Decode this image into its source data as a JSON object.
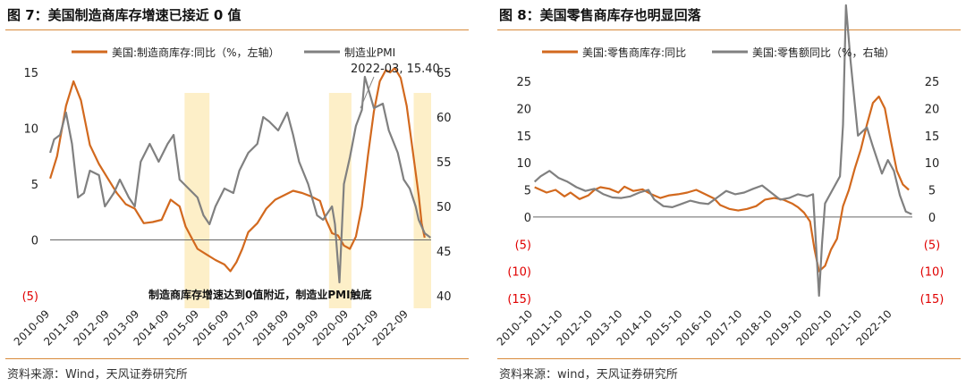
{
  "charts": [
    {
      "title": "图 7：美国制造商库存增速已接近 0 值",
      "source": "资料来源：Wind，天风证券研究所",
      "legend": [
        "美国:制造商库存:同比（%，左轴）",
        "制造业PMI"
      ],
      "annotation": "2022-03, 15.40",
      "note": "制造商库存增速达到0值附近，制造业PMI触底",
      "left_ticks": [
        "(5)",
        "0",
        "5",
        "10",
        "15"
      ],
      "right_ticks": [
        "40",
        "45",
        "50",
        "55",
        "60",
        "65"
      ],
      "x_ticks": [
        "2010-09",
        "2011-09",
        "2012-09",
        "2013-09",
        "2014-09",
        "2015-09",
        "2016-09",
        "2017-09",
        "2018-09",
        "2019-09",
        "2020-09",
        "2021-09",
        "2022-09"
      ]
    },
    {
      "title": "图 8：美国零售商库存也明显回落",
      "source": "资料来源：wind，天风证券研究所",
      "legend": [
        "美国:零售商库存:同比",
        "美国:零售额同比（%，右轴）"
      ],
      "left_ticks": [
        "(15)",
        "(10)",
        "(5)",
        "0",
        "5",
        "10",
        "15",
        "20",
        "25"
      ],
      "right_ticks": [
        "(15)",
        "(10)",
        "(5)",
        "0",
        "5",
        "10",
        "15",
        "20",
        "25"
      ],
      "x_ticks": [
        "2010-10",
        "2011-10",
        "2012-10",
        "2013-10",
        "2014-10",
        "2015-10",
        "2016-10",
        "2017-10",
        "2018-10",
        "2019-10",
        "2020-10",
        "2021-10",
        "2022-10"
      ]
    }
  ],
  "colors": {
    "orange": "#D2691E",
    "gray": "#808080",
    "highlight": "#FDEFC8",
    "negative": "#E00000",
    "rule": "#d88a3a"
  },
  "chart_data": [
    {
      "type": "line",
      "title": "图 7：美国制造商库存增速已接近 0 值",
      "x_range": [
        "2010-09",
        "2023-06"
      ],
      "y_left_range": [
        -5,
        15
      ],
      "y_right_range": [
        40,
        65
      ],
      "shaded_periods": [
        [
          "2015-03",
          "2016-01"
        ],
        [
          "2020-01",
          "2020-10"
        ],
        [
          "2022-11",
          "2023-06"
        ]
      ],
      "series": [
        {
          "name": "美国:制造商库存:同比（%，左轴）",
          "axis": "left",
          "points": [
            [
              2010.67,
              5.5
            ],
            [
              2010.9,
              7.5
            ],
            [
              2011.2,
              12
            ],
            [
              2011.45,
              14.2
            ],
            [
              2011.7,
              12.5
            ],
            [
              2012.0,
              8.5
            ],
            [
              2012.3,
              6.8
            ],
            [
              2012.6,
              5.5
            ],
            [
              2012.9,
              4.2
            ],
            [
              2013.2,
              3.2
            ],
            [
              2013.5,
              2.8
            ],
            [
              2013.8,
              1.5
            ],
            [
              2014.1,
              1.6
            ],
            [
              2014.4,
              1.8
            ],
            [
              2014.7,
              3.6
            ],
            [
              2015.0,
              3.0
            ],
            [
              2015.2,
              1.2
            ],
            [
              2015.4,
              0.2
            ],
            [
              2015.6,
              -0.8
            ],
            [
              2015.9,
              -1.3
            ],
            [
              2016.2,
              -1.8
            ],
            [
              2016.5,
              -2.2
            ],
            [
              2016.7,
              -2.8
            ],
            [
              2016.9,
              -2.0
            ],
            [
              2017.1,
              -0.8
            ],
            [
              2017.3,
              0.7
            ],
            [
              2017.6,
              1.5
            ],
            [
              2017.9,
              2.8
            ],
            [
              2018.2,
              3.6
            ],
            [
              2018.5,
              4.0
            ],
            [
              2018.8,
              4.4
            ],
            [
              2019.1,
              4.2
            ],
            [
              2019.4,
              3.9
            ],
            [
              2019.7,
              3.5
            ],
            [
              2019.9,
              1.8
            ],
            [
              2020.1,
              0.6
            ],
            [
              2020.3,
              0.4
            ],
            [
              2020.5,
              -0.5
            ],
            [
              2020.7,
              -0.8
            ],
            [
              2020.9,
              0.3
            ],
            [
              2021.1,
              3.0
            ],
            [
              2021.3,
              7.5
            ],
            [
              2021.5,
              11.5
            ],
            [
              2021.7,
              14.2
            ],
            [
              2021.9,
              15.2
            ],
            [
              2022.05,
              15.0
            ],
            [
              2022.2,
              15.4
            ],
            [
              2022.4,
              14.5
            ],
            [
              2022.6,
              12.0
            ],
            [
              2022.8,
              8.0
            ],
            [
              2023.0,
              4.0
            ],
            [
              2023.1,
              1.5
            ],
            [
              2023.2,
              0.2
            ]
          ]
        },
        {
          "name": "制造业PMI",
          "axis": "right",
          "points": [
            [
              2010.67,
              56
            ],
            [
              2010.8,
              57.5
            ],
            [
              2011.0,
              58
            ],
            [
              2011.2,
              60.5
            ],
            [
              2011.4,
              57
            ],
            [
              2011.6,
              51
            ],
            [
              2011.8,
              51.5
            ],
            [
              2012.0,
              54
            ],
            [
              2012.3,
              53.5
            ],
            [
              2012.5,
              50
            ],
            [
              2012.8,
              51.5
            ],
            [
              2013.0,
              53
            ],
            [
              2013.3,
              51
            ],
            [
              2013.5,
              50
            ],
            [
              2013.7,
              55
            ],
            [
              2014.0,
              57
            ],
            [
              2014.3,
              55
            ],
            [
              2014.6,
              57
            ],
            [
              2014.8,
              58
            ],
            [
              2015.0,
              53
            ],
            [
              2015.3,
              52
            ],
            [
              2015.6,
              51
            ],
            [
              2015.8,
              49
            ],
            [
              2016.0,
              48
            ],
            [
              2016.2,
              50
            ],
            [
              2016.5,
              52
            ],
            [
              2016.8,
              51.5
            ],
            [
              2017.0,
              54
            ],
            [
              2017.3,
              56
            ],
            [
              2017.6,
              57
            ],
            [
              2017.8,
              60
            ],
            [
              2018.0,
              59.5
            ],
            [
              2018.3,
              58.5
            ],
            [
              2018.6,
              60.5
            ],
            [
              2018.8,
              58
            ],
            [
              2019.0,
              55
            ],
            [
              2019.3,
              52.5
            ],
            [
              2019.6,
              49
            ],
            [
              2019.8,
              48.5
            ],
            [
              2020.1,
              50
            ],
            [
              2020.2,
              48
            ],
            [
              2020.35,
              41.5
            ],
            [
              2020.5,
              52.5
            ],
            [
              2020.7,
              55.5
            ],
            [
              2020.9,
              59
            ],
            [
              2021.1,
              60.8
            ],
            [
              2021.2,
              64.5
            ],
            [
              2021.5,
              61
            ],
            [
              2021.8,
              61.5
            ],
            [
              2022.0,
              58.5
            ],
            [
              2022.3,
              56
            ],
            [
              2022.5,
              53
            ],
            [
              2022.7,
              52
            ],
            [
              2022.9,
              50
            ],
            [
              2023.0,
              48.5
            ],
            [
              2023.2,
              47
            ],
            [
              2023.4,
              46.5
            ]
          ]
        }
      ]
    },
    {
      "type": "line",
      "title": "图 8：美国零售商库存也明显回落",
      "x_range": [
        "2010-10",
        "2023-06"
      ],
      "y_left_range": [
        -15,
        25
      ],
      "y_right_range": [
        -15,
        25
      ],
      "series": [
        {
          "name": "美国:零售商库存:同比",
          "axis": "left",
          "points": [
            [
              2010.8,
              5.5
            ],
            [
              2011.2,
              4.5
            ],
            [
              2011.5,
              5
            ],
            [
              2011.8,
              3.8
            ],
            [
              2012.0,
              4.5
            ],
            [
              2012.3,
              3.3
            ],
            [
              2012.6,
              4
            ],
            [
              2012.8,
              5
            ],
            [
              2013.0,
              5.5
            ],
            [
              2013.3,
              5.2
            ],
            [
              2013.6,
              4.5
            ],
            [
              2013.8,
              5.6
            ],
            [
              2014.1,
              4.8
            ],
            [
              2014.4,
              5.1
            ],
            [
              2014.7,
              4.2
            ],
            [
              2015.0,
              3.5
            ],
            [
              2015.3,
              4.0
            ],
            [
              2015.6,
              4.2
            ],
            [
              2015.9,
              4.5
            ],
            [
              2016.2,
              5.0
            ],
            [
              2016.5,
              4.2
            ],
            [
              2016.8,
              3.4
            ],
            [
              2017.0,
              2.2
            ],
            [
              2017.3,
              1.5
            ],
            [
              2017.6,
              1.2
            ],
            [
              2017.9,
              1.5
            ],
            [
              2018.2,
              2.0
            ],
            [
              2018.5,
              3.2
            ],
            [
              2018.8,
              3.5
            ],
            [
              2019.1,
              3.2
            ],
            [
              2019.4,
              2.5
            ],
            [
              2019.6,
              1.8
            ],
            [
              2019.8,
              0.8
            ],
            [
              2020.0,
              -0.8
            ],
            [
              2020.15,
              -6
            ],
            [
              2020.3,
              -10
            ],
            [
              2020.5,
              -9
            ],
            [
              2020.7,
              -6
            ],
            [
              2020.9,
              -4
            ],
            [
              2021.1,
              2
            ],
            [
              2021.3,
              5
            ],
            [
              2021.5,
              9
            ],
            [
              2021.7,
              12.5
            ],
            [
              2021.9,
              17
            ],
            [
              2022.1,
              21
            ],
            [
              2022.3,
              22.2
            ],
            [
              2022.5,
              20
            ],
            [
              2022.7,
              14
            ],
            [
              2022.9,
              8.5
            ],
            [
              2023.1,
              6
            ],
            [
              2023.3,
              5
            ]
          ]
        },
        {
          "name": "美国:零售额同比（%，右轴）",
          "axis": "right",
          "points": [
            [
              2010.8,
              6.5
            ],
            [
              2011.0,
              7.5
            ],
            [
              2011.3,
              8.5
            ],
            [
              2011.6,
              7.2
            ],
            [
              2011.9,
              6.5
            ],
            [
              2012.2,
              5.5
            ],
            [
              2012.5,
              4.8
            ],
            [
              2012.8,
              5.2
            ],
            [
              2013.1,
              4.2
            ],
            [
              2013.4,
              3.6
            ],
            [
              2013.7,
              3.5
            ],
            [
              2014.0,
              3.8
            ],
            [
              2014.3,
              4.5
            ],
            [
              2014.6,
              5.0
            ],
            [
              2014.8,
              3.2
            ],
            [
              2015.1,
              2.0
            ],
            [
              2015.4,
              1.8
            ],
            [
              2015.7,
              2.4
            ],
            [
              2016.0,
              3.0
            ],
            [
              2016.3,
              2.6
            ],
            [
              2016.6,
              2.4
            ],
            [
              2016.9,
              3.6
            ],
            [
              2017.2,
              4.8
            ],
            [
              2017.5,
              4.2
            ],
            [
              2017.8,
              4.5
            ],
            [
              2018.1,
              5.2
            ],
            [
              2018.4,
              5.8
            ],
            [
              2018.7,
              4.5
            ],
            [
              2019.0,
              3.2
            ],
            [
              2019.3,
              3.5
            ],
            [
              2019.6,
              4.2
            ],
            [
              2019.9,
              3.8
            ],
            [
              2020.1,
              4.2
            ],
            [
              2020.2,
              -5
            ],
            [
              2020.3,
              -14.5
            ],
            [
              2020.4,
              -5
            ],
            [
              2020.5,
              2.5
            ],
            [
              2020.8,
              5.5
            ],
            [
              2021.0,
              7.5
            ],
            [
              2021.1,
              17
            ],
            [
              2021.2,
              39
            ],
            [
              2021.35,
              29
            ],
            [
              2021.6,
              15
            ],
            [
              2021.9,
              16.5
            ],
            [
              2022.1,
              13
            ],
            [
              2022.4,
              8
            ],
            [
              2022.6,
              10.5
            ],
            [
              2022.8,
              8.5
            ],
            [
              2023.0,
              4.0
            ],
            [
              2023.2,
              1.0
            ],
            [
              2023.4,
              0.5
            ]
          ]
        }
      ]
    }
  ]
}
